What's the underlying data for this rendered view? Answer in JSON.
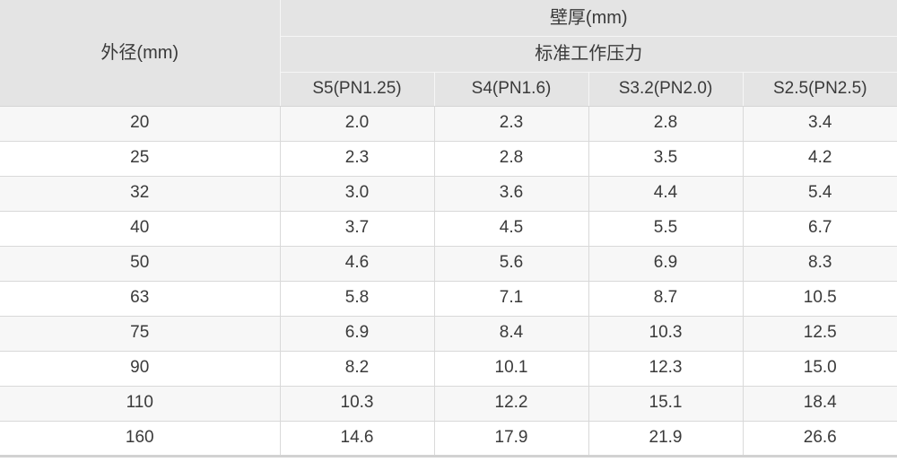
{
  "table": {
    "outer_diameter_header": "外径(mm)",
    "wall_thickness_header": "壁厚(mm)",
    "pressure_header": "标准工作压力",
    "columns": [
      "S5(PN1.25)",
      "S4(PN1.6)",
      "S3.2(PN2.0)",
      "S2.5(PN2.5)"
    ],
    "rows": [
      {
        "od": "20",
        "values": [
          "2.0",
          "2.3",
          "2.8",
          "3.4"
        ]
      },
      {
        "od": "25",
        "values": [
          "2.3",
          "2.8",
          "3.5",
          "4.2"
        ]
      },
      {
        "od": "32",
        "values": [
          "3.0",
          "3.6",
          "4.4",
          "5.4"
        ]
      },
      {
        "od": "40",
        "values": [
          "3.7",
          "4.5",
          "5.5",
          "6.7"
        ]
      },
      {
        "od": "50",
        "values": [
          "4.6",
          "5.6",
          "6.9",
          "8.3"
        ]
      },
      {
        "od": "63",
        "values": [
          "5.8",
          "7.1",
          "8.7",
          "10.5"
        ]
      },
      {
        "od": "75",
        "values": [
          "6.9",
          "8.4",
          "10.3",
          "12.5"
        ]
      },
      {
        "od": "90",
        "values": [
          "8.2",
          "10.1",
          "12.3",
          "15.0"
        ]
      },
      {
        "od": "110",
        "values": [
          "10.3",
          "12.2",
          "15.1",
          "18.4"
        ]
      },
      {
        "od": "160",
        "values": [
          "14.6",
          "17.9",
          "21.9",
          "26.6"
        ]
      }
    ]
  },
  "colors": {
    "header_bg": "#e4e4e4",
    "row_alt_bg": "#f7f7f7",
    "row_bg": "#ffffff",
    "body_border": "#d9d9d9",
    "header_border": "#f6f6f6",
    "bottom_border": "#d2d2d2",
    "text": "#3a3a3a"
  },
  "chart_data": {
    "type": "table",
    "title": "壁厚(mm) — 标准工作压力",
    "row_axis_label": "外径(mm)",
    "group_headers": [
      "壁厚(mm)",
      "标准工作压力"
    ],
    "column_headers": [
      "外径(mm)",
      "S5(PN1.25)",
      "S4(PN1.6)",
      "S3.2(PN2.0)",
      "S2.5(PN2.5)"
    ],
    "rows": [
      [
        20,
        2.0,
        2.3,
        2.8,
        3.4
      ],
      [
        25,
        2.3,
        2.8,
        3.5,
        4.2
      ],
      [
        32,
        3.0,
        3.6,
        4.4,
        5.4
      ],
      [
        40,
        3.7,
        4.5,
        5.5,
        6.7
      ],
      [
        50,
        4.6,
        5.6,
        6.9,
        8.3
      ],
      [
        63,
        5.8,
        7.1,
        8.7,
        10.5
      ],
      [
        75,
        6.9,
        8.4,
        10.3,
        12.5
      ],
      [
        90,
        8.2,
        10.1,
        12.3,
        15.0
      ],
      [
        110,
        10.3,
        12.2,
        15.1,
        18.4
      ],
      [
        160,
        14.6,
        17.9,
        21.9,
        26.6
      ]
    ]
  }
}
